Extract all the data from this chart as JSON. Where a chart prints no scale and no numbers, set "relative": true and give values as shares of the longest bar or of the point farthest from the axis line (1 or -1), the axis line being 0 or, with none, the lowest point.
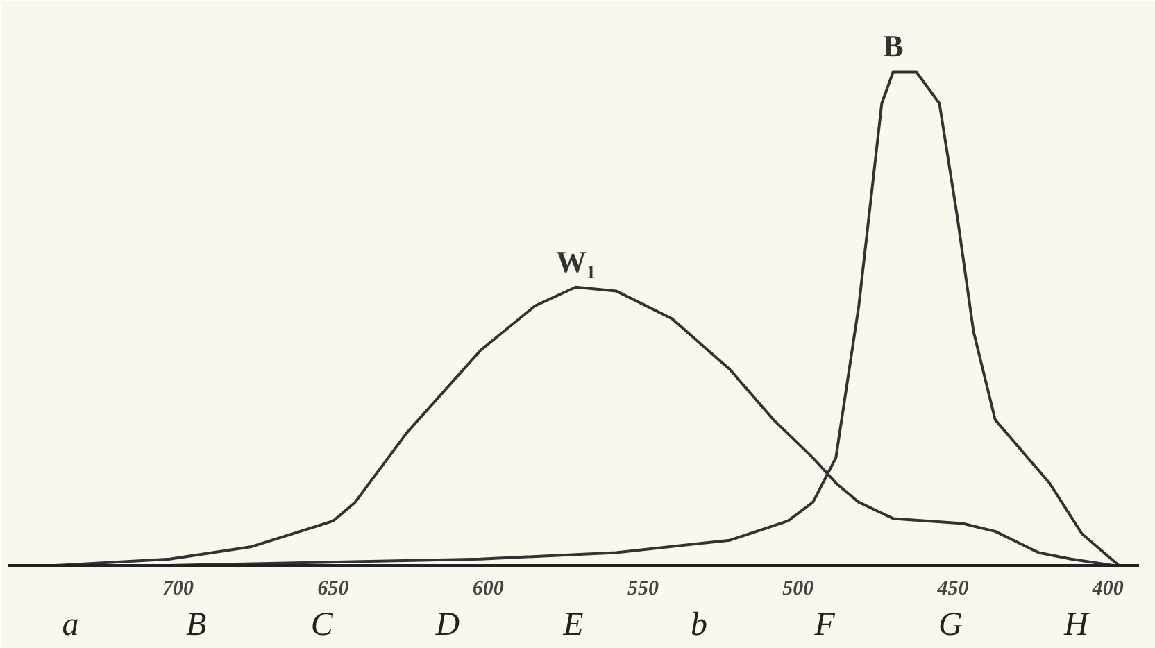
{
  "chart_data": {
    "type": "line",
    "relative": true,
    "x": [
      739.5,
      702.6,
      676.3,
      650,
      642.9,
      626.2,
      602.4,
      584.8,
      571.7,
      558.7,
      540.7,
      522.0,
      507.9,
      495.2,
      487.8,
      480.4,
      469.3,
      458.1,
      446.9,
      436.4,
      422.4,
      411.9,
      398.3
    ],
    "series": [
      {
        "name": "W₁",
        "color": "#333333",
        "values": [
          0,
          0.013,
          0.038,
          0.09,
          0.128,
          0.269,
          0.436,
          0.526,
          0.564,
          0.556,
          0.5,
          0.397,
          0.295,
          0.218,
          0.167,
          0.128,
          0.095,
          0.09,
          0.085,
          0.069,
          0.026,
          0.013,
          0
        ]
      },
      {
        "name": "B",
        "color": "#333333",
        "x": [
          702.6,
          602.4,
          558.7,
          522.0,
          503.3,
          495.2,
          487.8,
          480.4,
          476.7,
          473.0,
          469.3,
          461.9,
          454.4,
          448.6,
          443.4,
          436.4,
          418.9,
          408.4,
          396.5
        ],
        "values": [
          0,
          0.013,
          0.026,
          0.051,
          0.09,
          0.128,
          0.218,
          0.526,
          0.731,
          0.936,
          1,
          1,
          0.936,
          0.705,
          0.474,
          0.295,
          0.167,
          0.064,
          0
        ]
      }
    ],
    "xlim": [
      755,
      390
    ],
    "xticks": [
      700,
      650,
      600,
      550,
      500,
      450,
      400
    ],
    "grid": false,
    "marker": "none",
    "line_style": "solid",
    "annotations": [
      "a",
      "B",
      "C",
      "D",
      "E",
      "b",
      "F",
      "G",
      "H"
    ]
  }
}
